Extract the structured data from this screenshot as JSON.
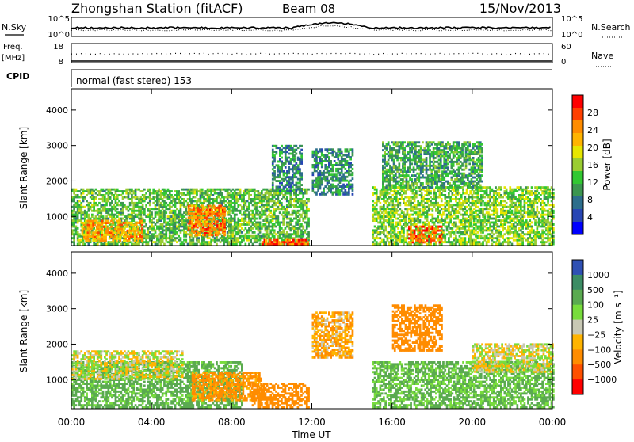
{
  "header": {
    "title": "Zhongshan Station (fitACF)",
    "beam": "Beam 08",
    "date": "15/Nov/2013"
  },
  "top_panels": {
    "nsky_label": "N.Sky",
    "nsky_ticks": [
      "10^5",
      "10^0"
    ],
    "nsearch_label": "N.Search",
    "nsearch_ticks": [
      "10^5",
      "10^0"
    ],
    "freq_label_line1": "Freq.",
    "freq_label_line2": "[MHz]",
    "freq_ticks": [
      "18",
      "8"
    ],
    "nave_label": "Nave",
    "nave_ticks": [
      "60",
      "0"
    ],
    "cpid_label": "CPID",
    "cpid_text": "normal (fast stereo) 153"
  },
  "axes": {
    "ylabel": "Slant Range [km]",
    "yticks": [
      "4000",
      "3000",
      "2000",
      "1000"
    ],
    "xticks": [
      "00:00",
      "04:00",
      "08:00",
      "12:00",
      "16:00",
      "20:00",
      "00:00"
    ],
    "xlabel": "Time UT"
  },
  "power_bar": {
    "label": "Power [dB]",
    "ticks": [
      "28",
      "24",
      "20",
      "16",
      "12",
      "8",
      "4"
    ],
    "colors": [
      "#ff0000",
      "#ff4000",
      "#ff8c00",
      "#ffb400",
      "#e6e600",
      "#9acd32",
      "#32c832",
      "#3c9650",
      "#2d6e8c",
      "#2846b4",
      "#0000ff"
    ]
  },
  "velocity_bar": {
    "label": "Velocity [m s⁻¹]",
    "ticks": [
      "1000",
      "500",
      "100",
      "25",
      "−25",
      "−100",
      "−500",
      "−1000"
    ],
    "colors": [
      "#2f50b4",
      "#3c8c64",
      "#5aaa50",
      "#78dc3c",
      "#c8c8b4",
      "#ffb400",
      "#ff8c00",
      "#ff5000",
      "#ff0000"
    ]
  },
  "chart_data": {
    "type": "heatmap",
    "title": "Zhongshan Station (fitACF)  Beam 08  15/Nov/2013",
    "xlabel": "Time UT",
    "ylabel": "Slant Range [km]",
    "xlim": [
      0,
      24
    ],
    "ylim": [
      180,
      4600
    ],
    "power_range_db": [
      0,
      30
    ],
    "velocity_range_ms": [
      -1000,
      1000
    ],
    "power_regions": [
      {
        "t0": 0.0,
        "t1": 11.8,
        "r0": 200,
        "r1": 1750,
        "level": 12
      },
      {
        "t0": 0.5,
        "t1": 3.5,
        "r0": 300,
        "r1": 900,
        "level": 22
      },
      {
        "t0": 5.8,
        "t1": 7.6,
        "r0": 450,
        "r1": 1300,
        "level": 24
      },
      {
        "t0": 9.5,
        "t1": 11.8,
        "r0": 200,
        "r1": 350,
        "level": 26
      },
      {
        "t0": 10.0,
        "t1": 11.5,
        "r0": 1700,
        "r1": 3000,
        "level": 8
      },
      {
        "t0": 12.0,
        "t1": 14.0,
        "r0": 1600,
        "r1": 2900,
        "level": 8
      },
      {
        "t0": 15.0,
        "t1": 24.0,
        "r0": 200,
        "r1": 1800,
        "level": 14
      },
      {
        "t0": 15.5,
        "t1": 20.5,
        "r0": 1800,
        "r1": 3100,
        "level": 10
      },
      {
        "t0": 16.8,
        "t1": 18.5,
        "r0": 250,
        "r1": 700,
        "level": 26
      }
    ],
    "velocity_regions": [
      {
        "t0": 0.0,
        "t1": 8.5,
        "r0": 200,
        "r1": 1500,
        "value": 150
      },
      {
        "t0": 0.0,
        "t1": 5.5,
        "r0": 1000,
        "r1": 1800,
        "value": 0
      },
      {
        "t0": 6.0,
        "t1": 9.5,
        "r0": 400,
        "r1": 1200,
        "value": -150
      },
      {
        "t0": 9.0,
        "t1": 11.8,
        "r0": 200,
        "r1": 900,
        "value": -300
      },
      {
        "t0": 12.0,
        "t1": 14.0,
        "r0": 1600,
        "r1": 2900,
        "value": -80
      },
      {
        "t0": 15.0,
        "t1": 24.0,
        "r0": 200,
        "r1": 1500,
        "value": 120
      },
      {
        "t0": 16.0,
        "t1": 18.5,
        "r0": 1800,
        "r1": 3100,
        "value": -200
      },
      {
        "t0": 20.0,
        "t1": 24.0,
        "r0": 1200,
        "r1": 2000,
        "value": 0
      }
    ]
  }
}
